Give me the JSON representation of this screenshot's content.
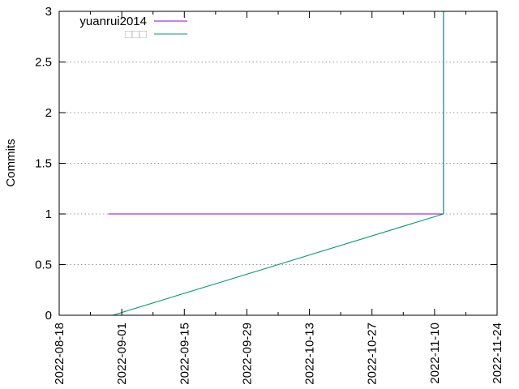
{
  "chart_data": {
    "type": "line",
    "title": "",
    "xlabel": "",
    "ylabel": "Commits",
    "x_type": "date",
    "xlim": [
      "2022-08-18",
      "2022-11-24"
    ],
    "ylim": [
      0,
      3
    ],
    "x_ticks": [
      "2022-08-18",
      "2022-09-01",
      "2022-09-15",
      "2022-09-29",
      "2022-10-13",
      "2022-10-27",
      "2022-11-10",
      "2022-11-24"
    ],
    "y_ticks": [
      "0",
      "0.5",
      "1",
      "1.5",
      "2",
      "2.5",
      "3"
    ],
    "grid": true,
    "legend_position": "top-left",
    "series": [
      {
        "name": "yuanrui2014",
        "color": "#9400d3",
        "points": [
          {
            "x": "2022-08-29",
            "y": 1
          },
          {
            "x": "2022-11-12",
            "y": 1
          },
          {
            "x": "2022-11-12",
            "y": 3
          }
        ]
      },
      {
        "name": "□□□",
        "color": "#009e73",
        "points": [
          {
            "x": "2022-08-30",
            "y": 0
          },
          {
            "x": "2022-11-12",
            "y": 1
          },
          {
            "x": "2022-11-12",
            "y": 3
          }
        ]
      }
    ]
  }
}
